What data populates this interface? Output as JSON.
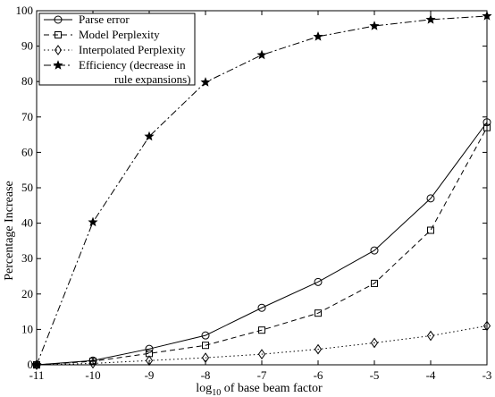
{
  "chart_data": {
    "type": "line",
    "xlabel_main": "log",
    "xlabel_sub": "10",
    "xlabel_rest": " of base beam factor",
    "ylabel": "Percentage Increase",
    "x": [
      -11,
      -10,
      -9,
      -8,
      -7,
      -6,
      -5,
      -4,
      -3
    ],
    "xlim": [
      -11,
      -3
    ],
    "ylim": [
      0,
      100
    ],
    "xticks": [
      -11,
      -10,
      -9,
      -8,
      -7,
      -6,
      -5,
      -4,
      -3
    ],
    "yticks": [
      0,
      10,
      20,
      30,
      40,
      50,
      60,
      70,
      80,
      90,
      100
    ],
    "grid": false,
    "legend_position": "top-left",
    "series": [
      {
        "name": "Parse error",
        "values": [
          0,
          1.2,
          4.5,
          8.3,
          16.1,
          23.4,
          32.3,
          47.0,
          68.5
        ],
        "line_style": "solid",
        "marker": "circle"
      },
      {
        "name": "Model Perplexity",
        "values": [
          0,
          1.0,
          3.2,
          5.5,
          9.8,
          14.6,
          23.0,
          38.0,
          67.0
        ],
        "line_style": "dashed",
        "marker": "square"
      },
      {
        "name": "Interpolated Perplexity",
        "values": [
          0,
          0.4,
          1.2,
          2.0,
          3.0,
          4.4,
          6.2,
          8.2,
          11.0
        ],
        "line_style": "dotted",
        "marker": "diamond"
      },
      {
        "name": "Efficiency  (decrease in",
        "name_line2": "rule expansions)",
        "values": [
          0,
          40.3,
          64.5,
          79.8,
          87.5,
          92.7,
          95.7,
          97.5,
          98.5
        ],
        "line_style": "dash-dot",
        "marker": "star"
      }
    ]
  }
}
